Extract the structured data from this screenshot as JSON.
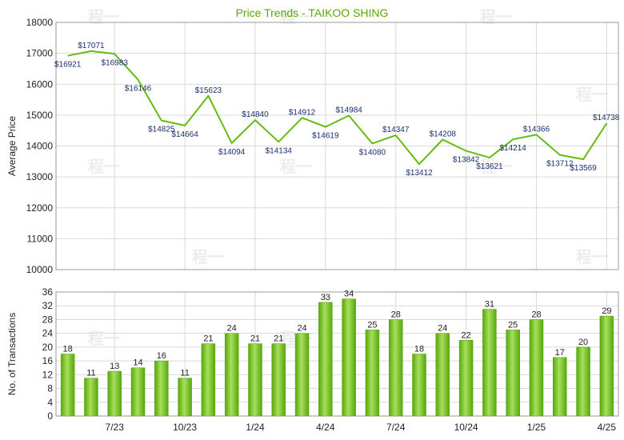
{
  "title": "Price Trends - TAIKOO SHING",
  "watermark": "程一",
  "colors": {
    "title": "#5aa800",
    "line": "#66bb11",
    "bar_light": "#a6e05a",
    "bar_dark": "#58a60e",
    "grid": "#d9d9d9",
    "plot_border": "#999999",
    "data_label": "#1a2f6e"
  },
  "chart_data": [
    {
      "type": "line",
      "ylabel": "Average Price",
      "ylim": [
        10000,
        18000
      ],
      "yticks": [
        10000,
        11000,
        12000,
        13000,
        14000,
        15000,
        16000,
        17000,
        18000
      ],
      "grid": true,
      "series": [
        {
          "values": [
            16921,
            17071,
            16983,
            16146,
            14825,
            14664,
            15623,
            14094,
            14840,
            14134,
            14912,
            14619,
            14984,
            14080,
            14347,
            13412,
            14208,
            13842,
            13621,
            14214,
            14366,
            13712,
            13569,
            14738
          ],
          "labels": [
            "$16921",
            "$17071",
            "$16983",
            "$16146",
            "$14825",
            "$14664",
            "$15623",
            "$14094",
            "$14840",
            "$14134",
            "$14912",
            "$14619",
            "$14984",
            "$14080",
            "$14347",
            "$13412",
            "$14208",
            "$13842",
            "$13621",
            "$14214",
            "$14366",
            "$13712",
            "$13569",
            "$14738"
          ]
        }
      ]
    },
    {
      "type": "bar",
      "ylabel": "No. of Transactions",
      "ylim": [
        0,
        36
      ],
      "yticks": [
        0,
        4,
        8,
        12,
        16,
        20,
        24,
        28,
        32,
        36
      ],
      "grid": true,
      "values": [
        18,
        11,
        13,
        14,
        16,
        11,
        21,
        24,
        21,
        21,
        24,
        33,
        34,
        25,
        28,
        18,
        24,
        22,
        31,
        25,
        28,
        17,
        20,
        29
      ],
      "xticks": [
        {
          "index": 2,
          "label": "7/23"
        },
        {
          "index": 5,
          "label": "10/23"
        },
        {
          "index": 8,
          "label": "1/24"
        },
        {
          "index": 11,
          "label": "4/24"
        },
        {
          "index": 14,
          "label": "7/24"
        },
        {
          "index": 17,
          "label": "10/24"
        },
        {
          "index": 20,
          "label": "1/25"
        },
        {
          "index": 23,
          "label": "4/25"
        }
      ]
    }
  ]
}
